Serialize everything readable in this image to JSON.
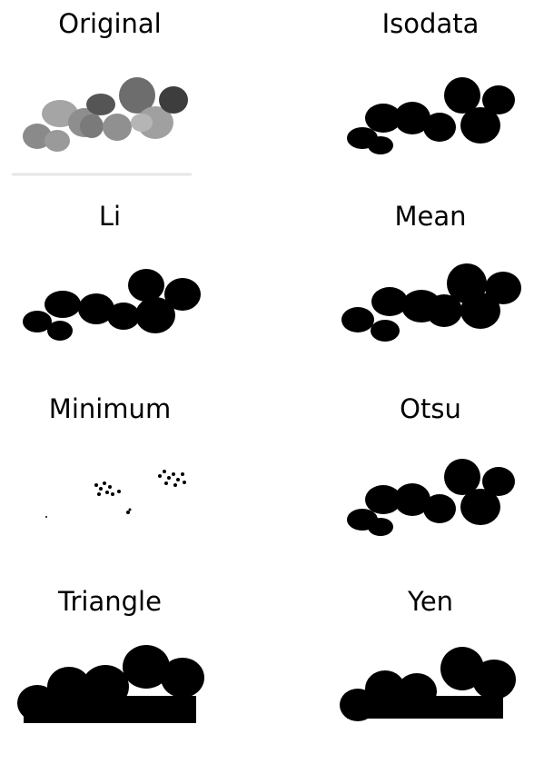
{
  "panels": [
    {
      "title": "Original"
    },
    {
      "title": "Isodata"
    },
    {
      "title": "Li"
    },
    {
      "title": "Mean"
    },
    {
      "title": "Minimum"
    },
    {
      "title": "Otsu"
    },
    {
      "title": "Triangle"
    },
    {
      "title": "Yen"
    }
  ],
  "colors": {
    "foreground": "#000000",
    "background": "#ffffff"
  }
}
